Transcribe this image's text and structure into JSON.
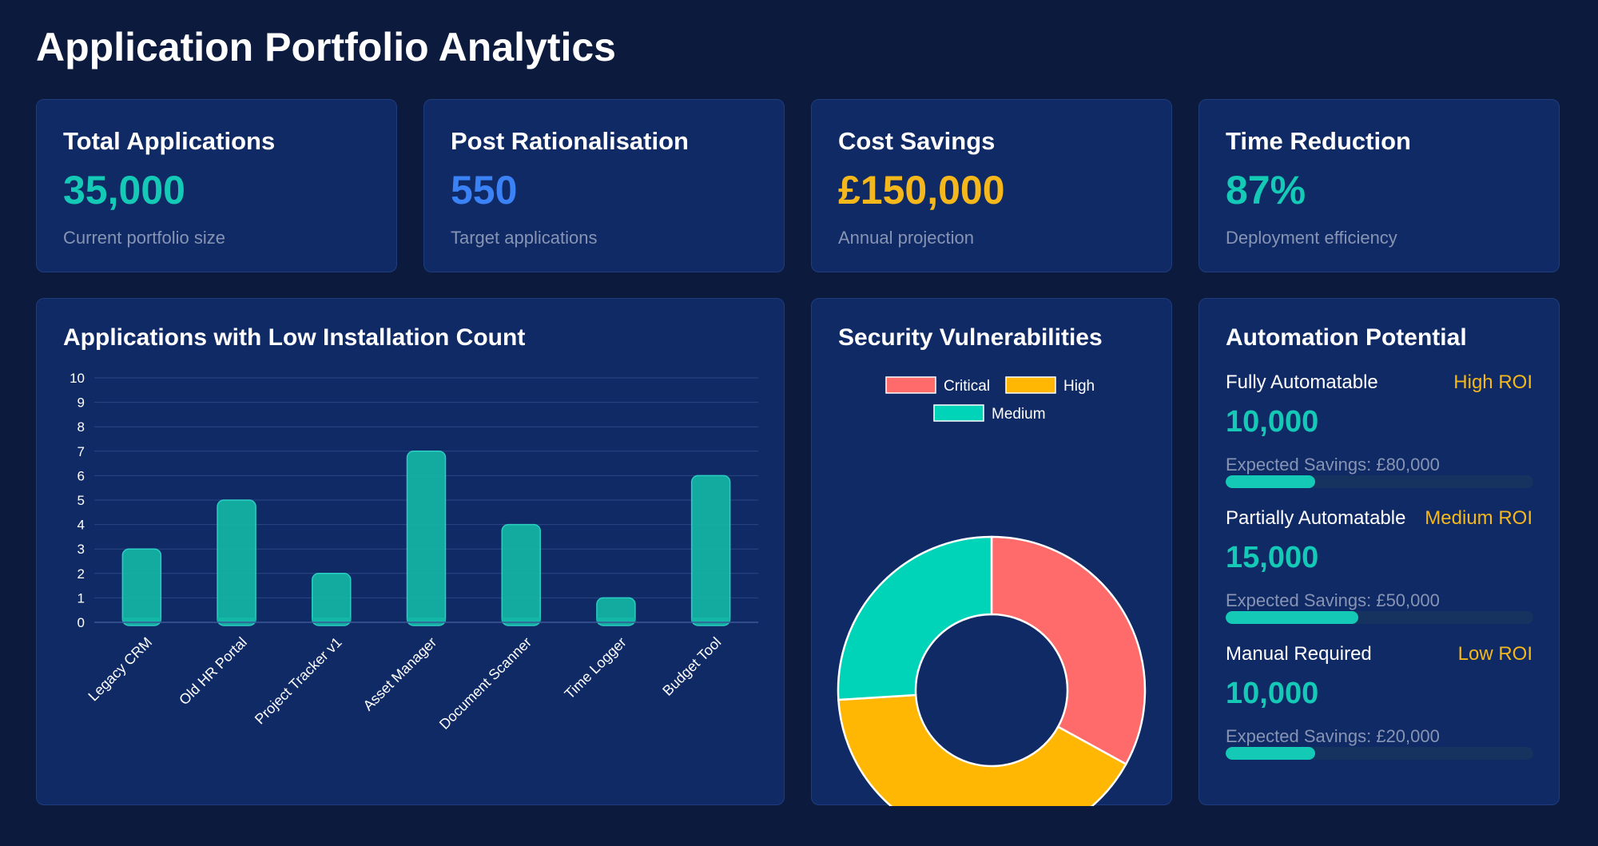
{
  "page": {
    "title": "Application Portfolio Analytics"
  },
  "stats": [
    {
      "title": "Total Applications",
      "value": "35,000",
      "sub": "Current portfolio size",
      "color": "#14c9b5"
    },
    {
      "title": "Post Rationalisation",
      "value": "550",
      "sub": "Target applications",
      "color": "#3b82f6"
    },
    {
      "title": "Cost Savings",
      "value": "£150,000",
      "sub": "Annual projection",
      "color": "#f5b81c"
    },
    {
      "title": "Time Reduction",
      "value": "87%",
      "sub": "Deployment efficiency",
      "color": "#14c9b5"
    }
  ],
  "low_install": {
    "title": "Applications with Low Installation Count"
  },
  "security": {
    "title": "Security Vulnerabilities"
  },
  "automation": {
    "title": "Automation Potential",
    "items": [
      {
        "label": "Fully Automatable",
        "roi": "High ROI",
        "value": "10,000",
        "savings": "Expected Savings: £80,000",
        "progress": 0.29
      },
      {
        "label": "Partially Automatable",
        "roi": "Medium ROI",
        "value": "15,000",
        "savings": "Expected Savings: £50,000",
        "progress": 0.43
      },
      {
        "label": "Manual Required",
        "roi": "Low ROI",
        "value": "10,000",
        "savings": "Expected Savings: £20,000",
        "progress": 0.29
      }
    ]
  },
  "chart_data": [
    {
      "type": "bar",
      "title": "Applications with Low Installation Count",
      "categories": [
        "Legacy CRM",
        "Old HR Portal",
        "Project Tracker v1",
        "Asset Manager",
        "Document Scanner",
        "Time Logger",
        "Budget Tool"
      ],
      "values": [
        3,
        5,
        2,
        7,
        4,
        1,
        6
      ],
      "ylim": [
        0,
        10
      ],
      "yticks": [
        0,
        1,
        2,
        3,
        4,
        5,
        6,
        7,
        8,
        9,
        10
      ],
      "grid": true,
      "color": "#14b8a6"
    },
    {
      "type": "pie",
      "title": "Security Vulnerabilities",
      "donut": true,
      "labels": [
        "Critical",
        "High",
        "Medium"
      ],
      "values": [
        33,
        41,
        26
      ],
      "colors": [
        "#ff6b6b",
        "#ffb703",
        "#00d4b8"
      ],
      "legend": "top"
    }
  ]
}
